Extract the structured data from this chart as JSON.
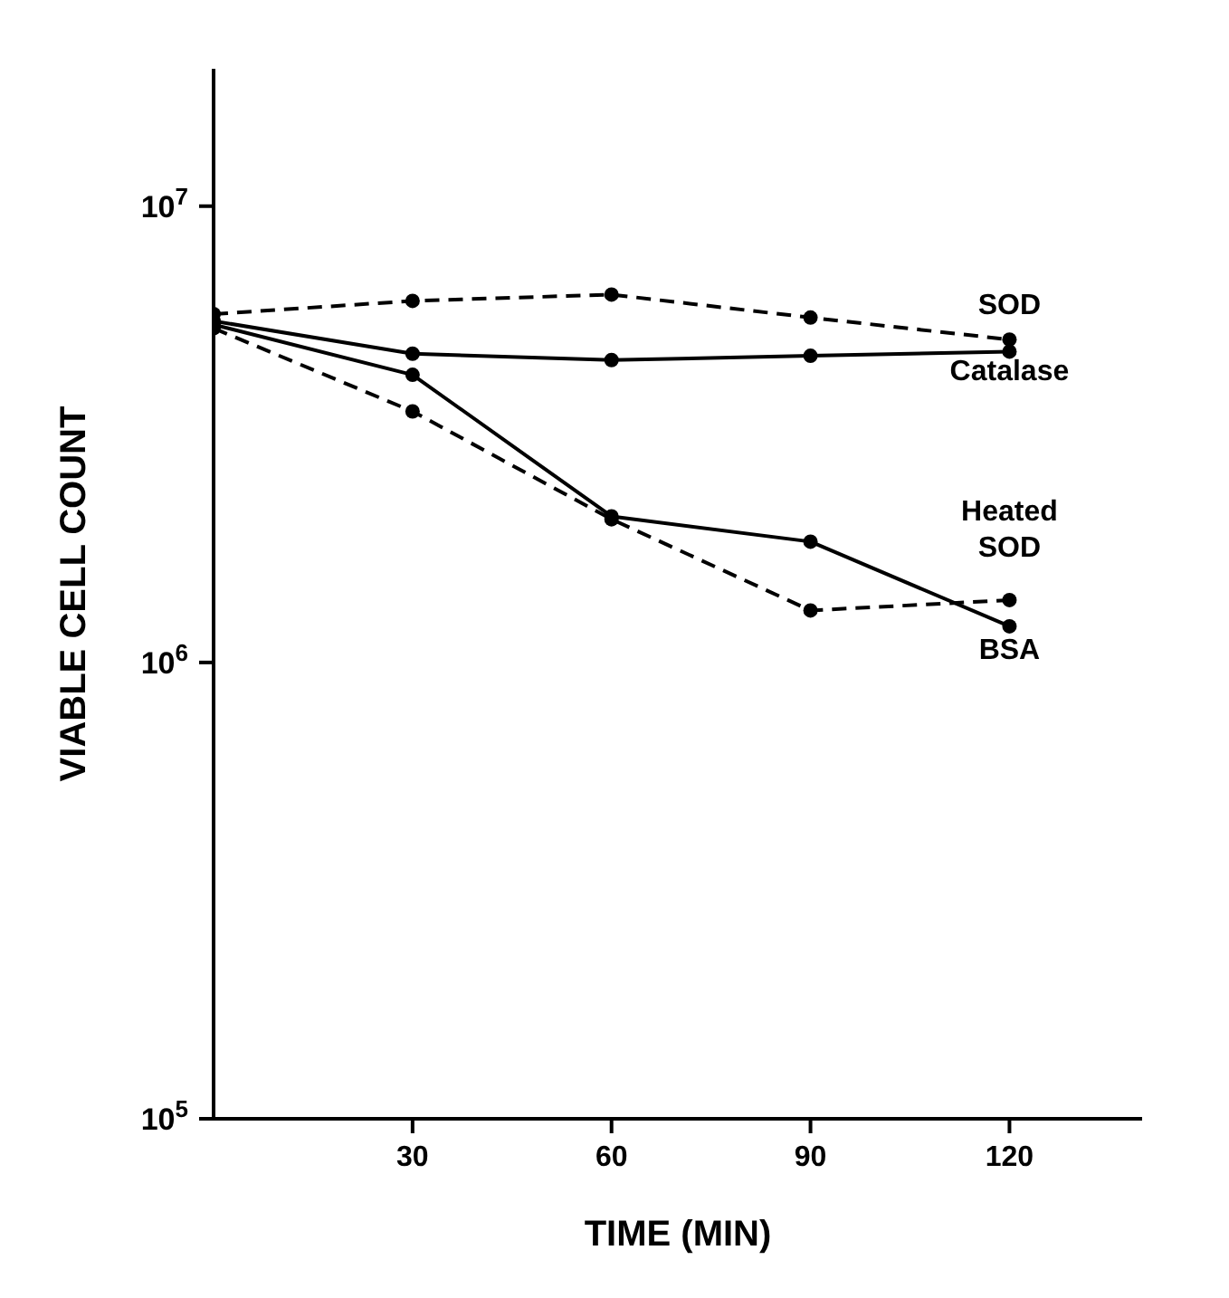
{
  "chart_data": {
    "type": "line",
    "xlabel": "TIME (MIN)",
    "ylabel": "VIABLE CELL COUNT",
    "x": [
      0,
      30,
      60,
      90,
      120
    ],
    "series": [
      {
        "name": "SOD",
        "color": "#000000",
        "line_style": "dashed",
        "values": [
          5800000,
          6200000,
          6400000,
          5700000,
          5100000
        ]
      },
      {
        "name": "Catalase",
        "color": "#000000",
        "line_style": "solid",
        "values": [
          5600000,
          4750000,
          4600000,
          4700000,
          4800000
        ]
      },
      {
        "name": "Heated SOD",
        "color": "#000000",
        "line_style": "dashed",
        "values": [
          5400000,
          3550000,
          2060000,
          1300000,
          1370000
        ]
      },
      {
        "name": "BSA",
        "color": "#000000",
        "line_style": "solid",
        "values": [
          5500000,
          4270000,
          2090000,
          1840000,
          1200000
        ]
      }
    ],
    "xlim": [
      0,
      140
    ],
    "xticks": [
      30,
      60,
      90,
      120
    ],
    "ylim": [
      100000,
      20000000
    ],
    "yticks": [
      {
        "value": 100000,
        "label": "10$^{5}$"
      },
      {
        "value": 1000000,
        "label": "10$^{6}$"
      },
      {
        "value": 10000000,
        "label": "10$^{7}$"
      }
    ],
    "log": "y",
    "grid": false,
    "legend": false,
    "marker": "circle"
  }
}
